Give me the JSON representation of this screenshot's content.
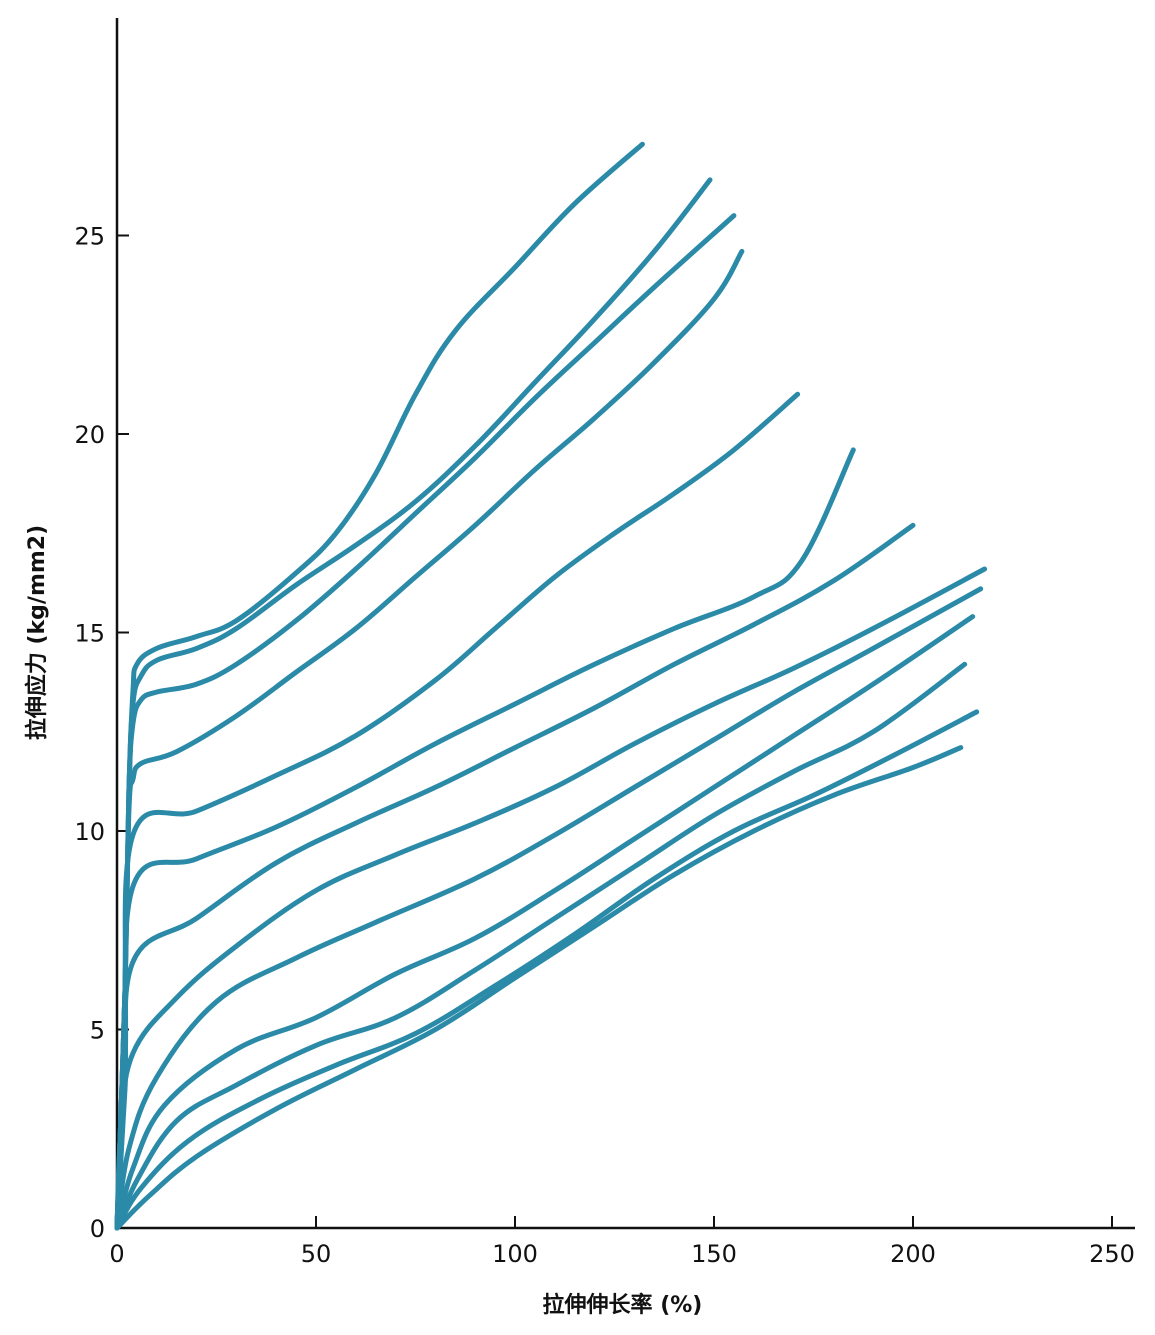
{
  "chart_data": {
    "type": "line",
    "xlabel": "拉伸伸长率 (%)",
    "ylabel": "拉伸应力 (kg/mm2)",
    "xlim": [
      0,
      255
    ],
    "ylim": [
      0,
      30
    ],
    "xticks": [
      0,
      50,
      100,
      150,
      200,
      250
    ],
    "yticks": [
      0,
      5,
      10,
      15,
      20,
      25
    ],
    "grid": false,
    "legend": "none",
    "line_color": "#2a8aa8",
    "series": [
      {
        "points": [
          [
            0,
            0
          ],
          [
            2,
            6
          ],
          [
            3,
            11
          ],
          [
            4,
            13.5
          ],
          [
            5,
            14.2
          ],
          [
            10,
            14.6
          ],
          [
            20,
            14.9
          ],
          [
            30,
            15.3
          ],
          [
            45,
            16.5
          ],
          [
            55,
            17.5
          ],
          [
            65,
            19
          ],
          [
            75,
            21
          ],
          [
            85,
            22.6
          ],
          [
            100,
            24.2
          ],
          [
            115,
            25.8
          ],
          [
            132,
            27.3
          ]
        ]
      },
      {
        "points": [
          [
            0,
            0
          ],
          [
            2,
            6
          ],
          [
            3,
            11
          ],
          [
            4,
            13.2
          ],
          [
            6,
            13.9
          ],
          [
            10,
            14.3
          ],
          [
            20,
            14.6
          ],
          [
            30,
            15.1
          ],
          [
            45,
            16.2
          ],
          [
            60,
            17.2
          ],
          [
            75,
            18.3
          ],
          [
            90,
            19.7
          ],
          [
            105,
            21.3
          ],
          [
            120,
            22.9
          ],
          [
            135,
            24.6
          ],
          [
            149,
            26.4
          ]
        ]
      },
      {
        "points": [
          [
            0,
            0
          ],
          [
            2,
            6
          ],
          [
            3,
            11
          ],
          [
            4,
            12.7
          ],
          [
            6,
            13.3
          ],
          [
            10,
            13.5
          ],
          [
            20,
            13.7
          ],
          [
            30,
            14.2
          ],
          [
            45,
            15.3
          ],
          [
            60,
            16.6
          ],
          [
            75,
            18
          ],
          [
            90,
            19.4
          ],
          [
            105,
            20.9
          ],
          [
            120,
            22.3
          ],
          [
            135,
            23.7
          ],
          [
            155,
            25.5
          ]
        ]
      },
      {
        "points": [
          [
            0,
            0
          ],
          [
            2,
            6
          ],
          [
            3,
            10.5
          ],
          [
            4,
            11.3
          ],
          [
            6,
            11.7
          ],
          [
            15,
            12
          ],
          [
            30,
            12.9
          ],
          [
            45,
            14
          ],
          [
            60,
            15.1
          ],
          [
            75,
            16.4
          ],
          [
            90,
            17.7
          ],
          [
            105,
            19.1
          ],
          [
            120,
            20.4
          ],
          [
            135,
            21.8
          ],
          [
            150,
            23.4
          ],
          [
            157,
            24.6
          ]
        ]
      },
      {
        "points": [
          [
            0,
            0
          ],
          [
            2,
            5
          ],
          [
            4,
            9.9
          ],
          [
            20,
            10.5
          ],
          [
            40,
            11.4
          ],
          [
            60,
            12.4
          ],
          [
            80,
            13.8
          ],
          [
            95,
            15.1
          ],
          [
            110,
            16.4
          ],
          [
            125,
            17.5
          ],
          [
            140,
            18.5
          ],
          [
            155,
            19.6
          ],
          [
            171,
            21
          ]
        ]
      },
      {
        "points": [
          [
            0,
            0
          ],
          [
            2,
            4
          ],
          [
            4,
            8.6
          ],
          [
            20,
            9.3
          ],
          [
            40,
            10.1
          ],
          [
            60,
            11.1
          ],
          [
            80,
            12.2
          ],
          [
            100,
            13.2
          ],
          [
            120,
            14.2
          ],
          [
            140,
            15.1
          ],
          [
            160,
            15.9
          ],
          [
            172,
            16.8
          ],
          [
            185,
            19.6
          ]
        ]
      },
      {
        "points": [
          [
            0,
            0
          ],
          [
            2,
            3.5
          ],
          [
            4,
            6.7
          ],
          [
            20,
            7.8
          ],
          [
            40,
            9.2
          ],
          [
            60,
            10.2
          ],
          [
            80,
            11.1
          ],
          [
            100,
            12.1
          ],
          [
            120,
            13.1
          ],
          [
            140,
            14.2
          ],
          [
            160,
            15.2
          ],
          [
            180,
            16.3
          ],
          [
            200,
            17.7
          ]
        ]
      },
      {
        "points": [
          [
            0,
            0
          ],
          [
            1,
            2.5
          ],
          [
            4,
            4.4
          ],
          [
            15,
            5.8
          ],
          [
            30,
            7.1
          ],
          [
            50,
            8.5
          ],
          [
            70,
            9.4
          ],
          [
            90,
            10.2
          ],
          [
            110,
            11.1
          ],
          [
            130,
            12.2
          ],
          [
            150,
            13.2
          ],
          [
            170,
            14.1
          ],
          [
            190,
            15.1
          ],
          [
            218,
            16.6
          ]
        ]
      },
      {
        "points": [
          [
            0,
            0
          ],
          [
            3,
            2
          ],
          [
            10,
            3.8
          ],
          [
            25,
            5.7
          ],
          [
            45,
            6.8
          ],
          [
            65,
            7.7
          ],
          [
            90,
            8.8
          ],
          [
            110,
            9.9
          ],
          [
            130,
            11.1
          ],
          [
            150,
            12.3
          ],
          [
            170,
            13.5
          ],
          [
            190,
            14.6
          ],
          [
            217,
            16.1
          ]
        ]
      },
      {
        "points": [
          [
            0,
            0
          ],
          [
            4,
            1.5
          ],
          [
            12,
            3.1
          ],
          [
            30,
            4.5
          ],
          [
            50,
            5.3
          ],
          [
            70,
            6.4
          ],
          [
            90,
            7.3
          ],
          [
            110,
            8.5
          ],
          [
            130,
            9.8
          ],
          [
            150,
            11.1
          ],
          [
            170,
            12.4
          ],
          [
            190,
            13.7
          ],
          [
            215,
            15.4
          ]
        ]
      },
      {
        "points": [
          [
            0,
            0
          ],
          [
            5,
            1.2
          ],
          [
            15,
            2.7
          ],
          [
            30,
            3.6
          ],
          [
            50,
            4.6
          ],
          [
            70,
            5.3
          ],
          [
            90,
            6.5
          ],
          [
            110,
            7.8
          ],
          [
            130,
            9.1
          ],
          [
            150,
            10.4
          ],
          [
            170,
            11.5
          ],
          [
            190,
            12.5
          ],
          [
            213,
            14.2
          ]
        ]
      },
      {
        "points": [
          [
            0,
            0
          ],
          [
            6,
            1
          ],
          [
            18,
            2.2
          ],
          [
            35,
            3.2
          ],
          [
            55,
            4.1
          ],
          [
            75,
            4.9
          ],
          [
            95,
            6.1
          ],
          [
            115,
            7.4
          ],
          [
            135,
            8.8
          ],
          [
            155,
            10
          ],
          [
            175,
            10.9
          ],
          [
            195,
            11.9
          ],
          [
            216,
            13
          ]
        ]
      },
      {
        "points": [
          [
            0,
            0
          ],
          [
            8,
            0.8
          ],
          [
            20,
            1.8
          ],
          [
            40,
            3
          ],
          [
            60,
            4
          ],
          [
            80,
            5
          ],
          [
            100,
            6.3
          ],
          [
            120,
            7.6
          ],
          [
            140,
            8.9
          ],
          [
            160,
            10
          ],
          [
            180,
            10.9
          ],
          [
            200,
            11.6
          ],
          [
            212,
            12.1
          ]
        ]
      }
    ]
  }
}
